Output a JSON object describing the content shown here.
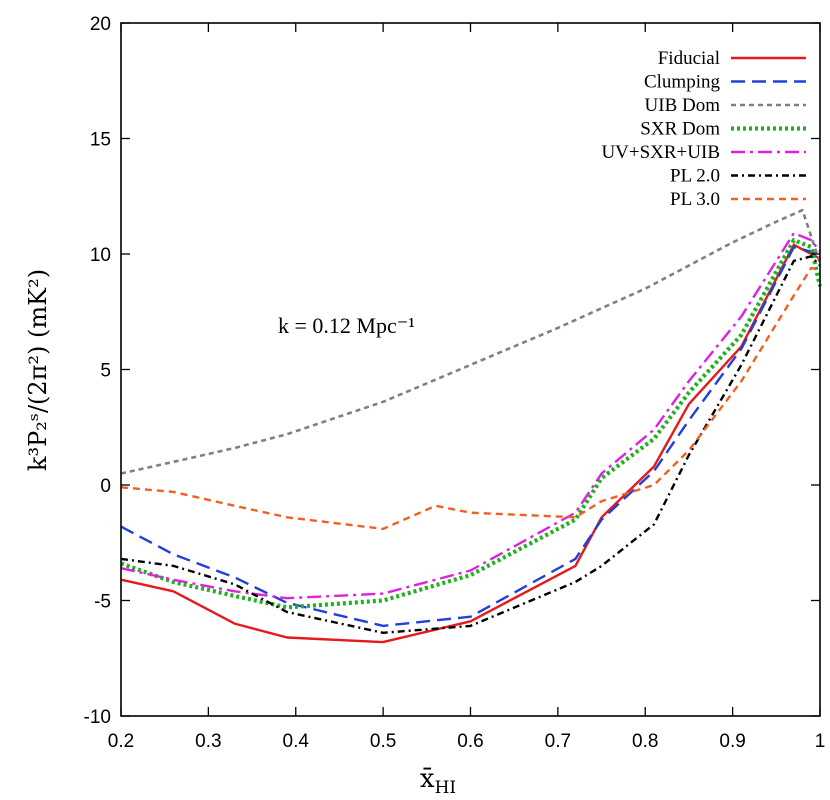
{
  "chart_data": {
    "type": "line",
    "title": "",
    "xlabel": "x̄HI",
    "xlabel_main": "x̄",
    "xlabel_sub": "HI",
    "ylabel": "k³P₂ˢ/(2π²) (mK²)",
    "annotation": "k = 0.12 Mpc⁻¹",
    "xlim": [
      0.2,
      1.0
    ],
    "ylim": [
      -10,
      20
    ],
    "xticks": [
      "0.2",
      "0.3",
      "0.4",
      "0.5",
      "0.6",
      "0.7",
      "0.8",
      "0.9",
      "1"
    ],
    "xtick_values": [
      0.2,
      0.3,
      0.4,
      0.5,
      0.6,
      0.7,
      0.8,
      0.9,
      1.0
    ],
    "yticks": [
      "-10",
      "-5",
      "0",
      "5",
      "10",
      "15",
      "20"
    ],
    "ytick_values": [
      -10,
      -5,
      0,
      5,
      10,
      15,
      20
    ],
    "grid": false,
    "legend_position": "top-right",
    "series": [
      {
        "name": "Fiducial",
        "color": "#e41a1c",
        "style": "solid",
        "x": [
          0.2,
          0.26,
          0.33,
          0.39,
          0.5,
          0.6,
          0.72,
          0.75,
          0.81,
          0.85,
          0.91,
          0.97,
          0.99,
          1.0
        ],
        "y": [
          -4.1,
          -4.6,
          -6.0,
          -6.6,
          -6.8,
          -5.9,
          -3.5,
          -1.4,
          0.8,
          3.5,
          6.0,
          10.4,
          10.0,
          9.8
        ]
      },
      {
        "name": "Clumping",
        "color": "#2040d8",
        "style": "dashed",
        "x": [
          0.2,
          0.26,
          0.33,
          0.39,
          0.5,
          0.6,
          0.72,
          0.75,
          0.81,
          0.85,
          0.91,
          0.97,
          0.99,
          1.0
        ],
        "y": [
          -1.8,
          -3.0,
          -4.0,
          -5.1,
          -6.1,
          -5.7,
          -3.2,
          -1.5,
          0.6,
          2.8,
          5.9,
          10.3,
          10.1,
          9.9
        ]
      },
      {
        "name": "UIB Dom",
        "color": "#808080",
        "style": "dotted-short",
        "x": [
          0.2,
          0.26,
          0.33,
          0.39,
          0.5,
          0.6,
          0.7,
          0.8,
          0.9,
          0.95,
          0.98,
          1.0
        ],
        "y": [
          0.5,
          1.0,
          1.6,
          2.2,
          3.6,
          5.2,
          6.8,
          8.5,
          10.5,
          11.4,
          11.9,
          9.6
        ]
      },
      {
        "name": "SXR Dom",
        "color": "#20b020",
        "style": "dotted",
        "x": [
          0.2,
          0.26,
          0.33,
          0.39,
          0.5,
          0.6,
          0.72,
          0.75,
          0.81,
          0.85,
          0.91,
          0.97,
          0.99,
          1.0
        ],
        "y": [
          -3.4,
          -4.2,
          -4.8,
          -5.3,
          -5.0,
          -3.9,
          -1.5,
          0.3,
          2.0,
          4.0,
          6.5,
          10.6,
          10.3,
          8.6
        ]
      },
      {
        "name": "UV+SXR+UIB",
        "color": "#e020e0",
        "style": "dashdot",
        "x": [
          0.2,
          0.26,
          0.33,
          0.39,
          0.5,
          0.6,
          0.72,
          0.75,
          0.81,
          0.85,
          0.91,
          0.97,
          0.99,
          1.0
        ],
        "y": [
          -3.6,
          -4.1,
          -4.6,
          -4.9,
          -4.7,
          -3.7,
          -1.2,
          0.5,
          2.4,
          4.5,
          7.3,
          10.9,
          10.6,
          10.1
        ]
      },
      {
        "name": "PL 2.0",
        "color": "#000000",
        "style": "dashdot-fine",
        "x": [
          0.2,
          0.26,
          0.33,
          0.39,
          0.5,
          0.6,
          0.72,
          0.75,
          0.81,
          0.85,
          0.91,
          0.97,
          0.99,
          1.0
        ],
        "y": [
          -3.2,
          -3.5,
          -4.3,
          -5.5,
          -6.4,
          -6.1,
          -4.2,
          -3.5,
          -1.7,
          1.3,
          5.2,
          9.7,
          9.9,
          9.5
        ]
      },
      {
        "name": "PL 3.0",
        "color": "#f06020",
        "style": "dashed-short",
        "x": [
          0.2,
          0.26,
          0.33,
          0.39,
          0.5,
          0.56,
          0.6,
          0.72,
          0.75,
          0.81,
          0.85,
          0.91,
          0.97,
          0.99,
          1.0
        ],
        "y": [
          -0.1,
          -0.3,
          -0.9,
          -1.4,
          -1.9,
          -0.9,
          -1.2,
          -1.4,
          -0.7,
          0.0,
          1.5,
          4.5,
          8.2,
          9.4,
          9.3
        ]
      }
    ]
  }
}
